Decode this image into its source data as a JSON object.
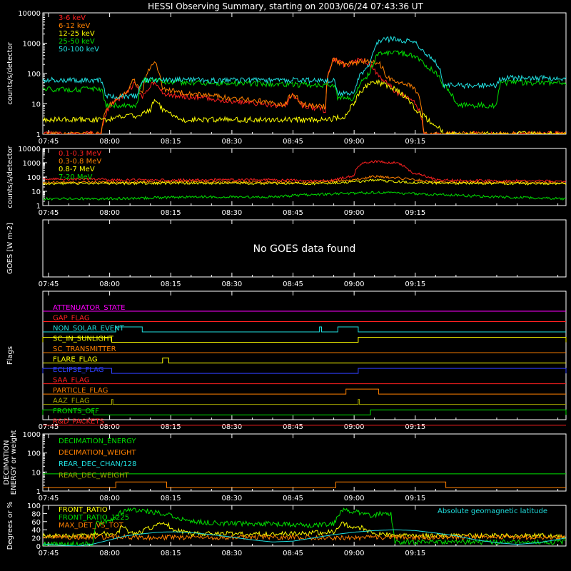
{
  "title": "HESSI Observing Summary, starting on 2003/06/24 07:43:36 UT",
  "time_axis": {
    "start_min": 463.6,
    "end_min": 592.0,
    "tick_minutes": [
      465,
      480,
      495,
      510,
      525,
      540,
      555
    ],
    "tick_labels": [
      "07:45",
      "08:00",
      "08:15",
      "08:30",
      "08:45",
      "09:00",
      "09:15"
    ]
  },
  "colors": {
    "red": "#ff2020",
    "orange": "#ff8000",
    "yellow": "#ffff00",
    "green": "#00e000",
    "cyan": "#20e0e0",
    "magenta": "#ff00ff",
    "blue": "#3040ff",
    "olive": "#a0a000",
    "white": "#ffffff"
  },
  "chart_data": [
    {
      "type": "line",
      "ylabel": "counts/s/detector",
      "log": true,
      "ylim": [
        1,
        10000
      ],
      "yticks": [
        "1",
        "10",
        "100",
        "1000",
        "10000"
      ],
      "series": [
        {
          "name": "3-6 keV",
          "color": "red",
          "x": [
            463.6,
            470,
            478,
            480,
            484,
            486,
            488,
            491,
            493,
            500,
            510,
            520,
            523,
            525,
            527,
            533,
            535,
            538,
            542,
            546,
            550,
            555,
            557,
            580,
            592
          ],
          "y": [
            1,
            1,
            1,
            8,
            20,
            45,
            14,
            55,
            20,
            17,
            12,
            9,
            8,
            20,
            9,
            6,
            300,
            180,
            300,
            80,
            25,
            10,
            1,
            1,
            1
          ]
        },
        {
          "name": "6-12 keV",
          "color": "orange",
          "x": [
            463.6,
            470,
            478,
            480,
            484,
            486,
            488,
            491,
            493,
            500,
            510,
            520,
            523,
            525,
            527,
            533,
            535,
            538,
            542,
            546,
            548,
            552,
            555,
            557,
            580,
            592
          ],
          "y": [
            1,
            1,
            1,
            9,
            22,
            60,
            18,
            240,
            30,
            22,
            15,
            11,
            9,
            22,
            10,
            8,
            280,
            190,
            260,
            220,
            70,
            50,
            30,
            1,
            1,
            1
          ]
        },
        {
          "name": "12-25 keV",
          "color": "yellow",
          "x": [
            463.6,
            470,
            478,
            480,
            483,
            487,
            490,
            491,
            493,
            497,
            500,
            510,
            520,
            530,
            534,
            538,
            540,
            542,
            545,
            548,
            551,
            553,
            555,
            558,
            560,
            562,
            592
          ],
          "y": [
            3,
            3,
            3,
            3,
            4,
            4,
            6,
            14,
            6,
            3,
            3,
            3,
            3,
            3,
            3,
            4,
            10,
            28,
            55,
            40,
            25,
            15,
            6,
            3,
            2,
            1,
            1
          ]
        },
        {
          "name": "25-50 keV",
          "color": "green",
          "x": [
            463.6,
            478,
            479,
            487,
            488,
            491,
            493,
            500,
            520,
            535,
            536,
            540,
            544,
            546,
            550,
            555,
            557,
            562,
            565,
            575,
            576,
            592
          ],
          "y": [
            30,
            30,
            9,
            9,
            60,
            60,
            55,
            50,
            45,
            40,
            15,
            15,
            100,
            450,
            500,
            380,
            200,
            40,
            9,
            9,
            50,
            50
          ]
        },
        {
          "name": "50-100 keV",
          "color": "cyan",
          "x": [
            463.6,
            478,
            479,
            487,
            488,
            535,
            536,
            540,
            544,
            546,
            550,
            555,
            557,
            562,
            565,
            575,
            576,
            592
          ],
          "y": [
            60,
            60,
            18,
            18,
            60,
            60,
            22,
            22,
            200,
            1200,
            1400,
            1000,
            500,
            40,
            40,
            40,
            70,
            70
          ]
        }
      ]
    },
    {
      "type": "line",
      "ylabel": "counts/s/detector",
      "log": true,
      "ylim": [
        1,
        10000
      ],
      "yticks": [
        "1",
        "10",
        "100",
        "1000",
        "10000"
      ],
      "series": [
        {
          "name": "0.1-0.3 MeV",
          "color": "red",
          "x": [
            463.6,
            479,
            480,
            520,
            530,
            535,
            540,
            542,
            545,
            550,
            554,
            560,
            592
          ],
          "y": [
            70,
            70,
            60,
            65,
            50,
            60,
            120,
            1000,
            1200,
            1000,
            200,
            60,
            50
          ]
        },
        {
          "name": "0.3-0.8 MeV",
          "color": "orange",
          "x": [
            463.6,
            500,
            530,
            540,
            545,
            550,
            555,
            560,
            592
          ],
          "y": [
            40,
            45,
            40,
            60,
            110,
            90,
            60,
            45,
            40
          ]
        },
        {
          "name": "0.8-7 MeV",
          "color": "yellow",
          "x": [
            463.6,
            500,
            530,
            540,
            545,
            555,
            592
          ],
          "y": [
            35,
            38,
            35,
            45,
            60,
            40,
            33
          ]
        },
        {
          "name": "7-20 MeV",
          "color": "green",
          "x": [
            463.6,
            480,
            500,
            520,
            530,
            545,
            560,
            575,
            592
          ],
          "y": [
            3,
            3,
            4,
            4,
            6,
            8,
            6,
            4,
            3
          ]
        }
      ]
    },
    {
      "type": "line",
      "ylabel": "GOES [W m-2]",
      "message": "No GOES data found"
    },
    {
      "type": "table",
      "ylabel": "Flags",
      "flags": [
        {
          "name": "ATTENUATOR_STATE",
          "color": "magenta",
          "segments": []
        },
        {
          "name": "GAP_FLAG",
          "color": "red",
          "segments": []
        },
        {
          "name": "NON_SOLAR_EVENT",
          "color": "cyan",
          "segments": [
            [
              481.5,
              488
            ],
            [
              531.5,
              532
            ],
            [
              536,
              541
            ]
          ]
        },
        {
          "name": "SC_IN_SUNLIGHT",
          "color": "yellow",
          "segments": [
            [
              463.6,
              480.5
            ],
            [
              541,
              592
            ]
          ],
          "invert": true
        },
        {
          "name": "SC_TRANSMITTER",
          "color": "orange",
          "segments": []
        },
        {
          "name": "FLARE_FLAG",
          "color": "yellow",
          "segments": [
            [
              493,
              494.5
            ]
          ]
        },
        {
          "name": "ECLIPSE_FLAG",
          "color": "blue",
          "segments": [
            [
              463.6,
              480.5
            ],
            [
              541,
              592
            ]
          ]
        },
        {
          "name": "SAA_FLAG",
          "color": "red",
          "segments": []
        },
        {
          "name": "PARTICLE_FLAG",
          "color": "orange",
          "segments": [
            [
              538,
              546
            ]
          ]
        },
        {
          "name": "AAZ_FLAG",
          "color": "olive",
          "segments": [
            [
              480.5,
              480.8
            ],
            [
              541,
              541.3
            ]
          ]
        },
        {
          "name": "FRONTS_OFF",
          "color": "green",
          "segments": [
            [
              463.6,
              476
            ],
            [
              544,
              592
            ]
          ],
          "invert": true
        },
        {
          "name": "R&D_PACKETS",
          "color": "red",
          "segments": []
        }
      ]
    },
    {
      "type": "line",
      "ylabel": "DECIMATION ENERGY or weight",
      "log": true,
      "ylim": [
        1,
        1000
      ],
      "yticks": [
        "1",
        "10",
        "100",
        "1000"
      ],
      "series": [
        {
          "name": "DECIMATION_ENERGY",
          "color": "green",
          "x": [
            463.6,
            592
          ],
          "y": [
            8,
            8
          ]
        },
        {
          "name": "DECIMATION_WEIGHT",
          "color": "orange",
          "x": [
            463.6,
            481.5,
            481.5,
            494,
            494,
            535.5,
            535.5,
            562.5,
            562.5,
            592
          ],
          "y": [
            1.5,
            1.5,
            3,
            3,
            1.5,
            1.5,
            3,
            3,
            1.5,
            1.5
          ]
        },
        {
          "name": "REAR_DEC_CHAN/128",
          "color": "cyan",
          "x": [],
          "y": []
        },
        {
          "name": "REAR_DEC_WEIGHT",
          "color": "olive",
          "x": [],
          "y": []
        }
      ]
    },
    {
      "type": "line",
      "ylabel": "Degrees or %",
      "log": false,
      "ylim": [
        0,
        100
      ],
      "yticks": [
        "0",
        "20",
        "40",
        "60",
        "80",
        "100"
      ],
      "series": [
        {
          "name": "FRONT_RATIO",
          "color": "yellow",
          "x": [
            463.6,
            476,
            476.5,
            478,
            480,
            482,
            483,
            485,
            487,
            490,
            493,
            496,
            500,
            510,
            520,
            525,
            530,
            535,
            537,
            540,
            542,
            545,
            548,
            550,
            560,
            592
          ],
          "y": [
            25,
            25,
            30,
            30,
            30,
            32,
            50,
            30,
            32,
            45,
            60,
            40,
            30,
            30,
            28,
            30,
            32,
            35,
            55,
            45,
            45,
            30,
            28,
            25,
            25,
            25
          ]
        },
        {
          "name": "FRONT_RATIO_1225",
          "color": "green",
          "x": [
            463.6,
            476,
            476.5,
            480,
            482,
            485,
            490,
            495,
            500,
            510,
            520,
            530,
            535,
            537,
            540,
            544,
            547,
            549,
            550,
            560,
            592
          ],
          "y": [
            5,
            5,
            55,
            60,
            80,
            90,
            85,
            75,
            60,
            55,
            55,
            50,
            55,
            90,
            85,
            75,
            80,
            80,
            10,
            10,
            10
          ]
        },
        {
          "name": "MAX_DET_VS_TOT",
          "color": "orange",
          "x": [
            463.6,
            480,
            500,
            520,
            540,
            560,
            592
          ],
          "y": [
            22,
            22,
            21,
            22,
            20,
            22,
            22
          ]
        },
        {
          "name": "Absolute geomagnetic latitude",
          "color": "cyan",
          "x": [
            463.6,
            468,
            472,
            476,
            480,
            484,
            488,
            492,
            496,
            500,
            505,
            510,
            515,
            520,
            525,
            530,
            535,
            540,
            545,
            550,
            555,
            560,
            565,
            570,
            575,
            580,
            585,
            590,
            592
          ],
          "y": [
            5,
            2,
            0,
            5,
            15,
            25,
            30,
            34,
            35,
            33,
            28,
            22,
            15,
            10,
            12,
            20,
            28,
            34,
            38,
            40,
            38,
            32,
            25,
            15,
            8,
            4,
            8,
            16,
            20
          ]
        }
      ]
    }
  ]
}
